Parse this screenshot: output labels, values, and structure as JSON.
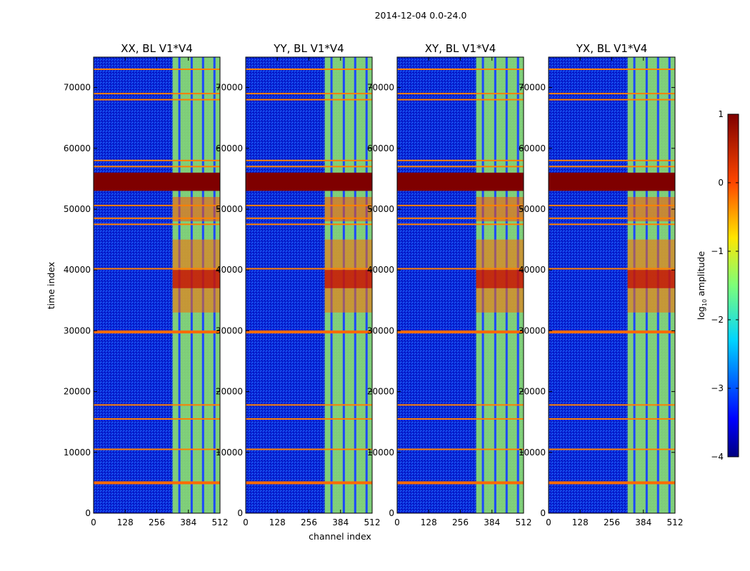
{
  "chart_data": {
    "type": "heatmap",
    "suptitle": "2014-12-04 0.0-24.0",
    "xlabel": "channel index",
    "ylabel": "time index",
    "xlim": [
      0,
      512
    ],
    "ylim": [
      0,
      75000
    ],
    "x_ticks": [
      0,
      128,
      256,
      384,
      512
    ],
    "x_tick_labels": [
      "0",
      "128",
      "256",
      "384",
      "512"
    ],
    "y_ticks": [
      0,
      10000,
      20000,
      30000,
      40000,
      50000,
      60000,
      70000
    ],
    "y_tick_labels": [
      "0",
      "10000",
      "20000",
      "30000",
      "40000",
      "50000",
      "60000",
      "70000"
    ],
    "panels": [
      {
        "title": "XX, BL V1*V4",
        "pol": "XX",
        "bright_columns": [
          320,
          512
        ]
      },
      {
        "title": "YY, BL V1*V4",
        "pol": "YY",
        "bright_columns": [
          320,
          512
        ]
      },
      {
        "title": "XY, BL V1*V4",
        "pol": "XY",
        "bright_columns": [
          320,
          512
        ]
      },
      {
        "title": "YX, BL V1*V4",
        "pol": "YX",
        "bright_columns": [
          320,
          512
        ]
      }
    ],
    "saturated_time_band": [
      53000,
      56000
    ],
    "flagged_rows": [
      5000,
      10500,
      15500,
      17800,
      29800,
      40200,
      47500,
      48500,
      50600,
      57000,
      58000,
      68000,
      69000,
      73000
    ],
    "colorbar": {
      "label": "log10 amplitude",
      "label_base": "log",
      "label_sub": "10",
      "label_rest": " amplitude",
      "range": [
        -4,
        1
      ],
      "ticks": [
        1,
        0,
        -1,
        -2,
        -3,
        -4
      ],
      "tick_labels": [
        "1",
        "0",
        "−1",
        "−2",
        "−3",
        "−4"
      ],
      "colormap": "jet",
      "colormap_stops": [
        "#00007f",
        "#0000ff",
        "#007fff",
        "#00ffff",
        "#7fff7f",
        "#ffff00",
        "#ff7f00",
        "#ff0000",
        "#7f0000"
      ]
    }
  }
}
